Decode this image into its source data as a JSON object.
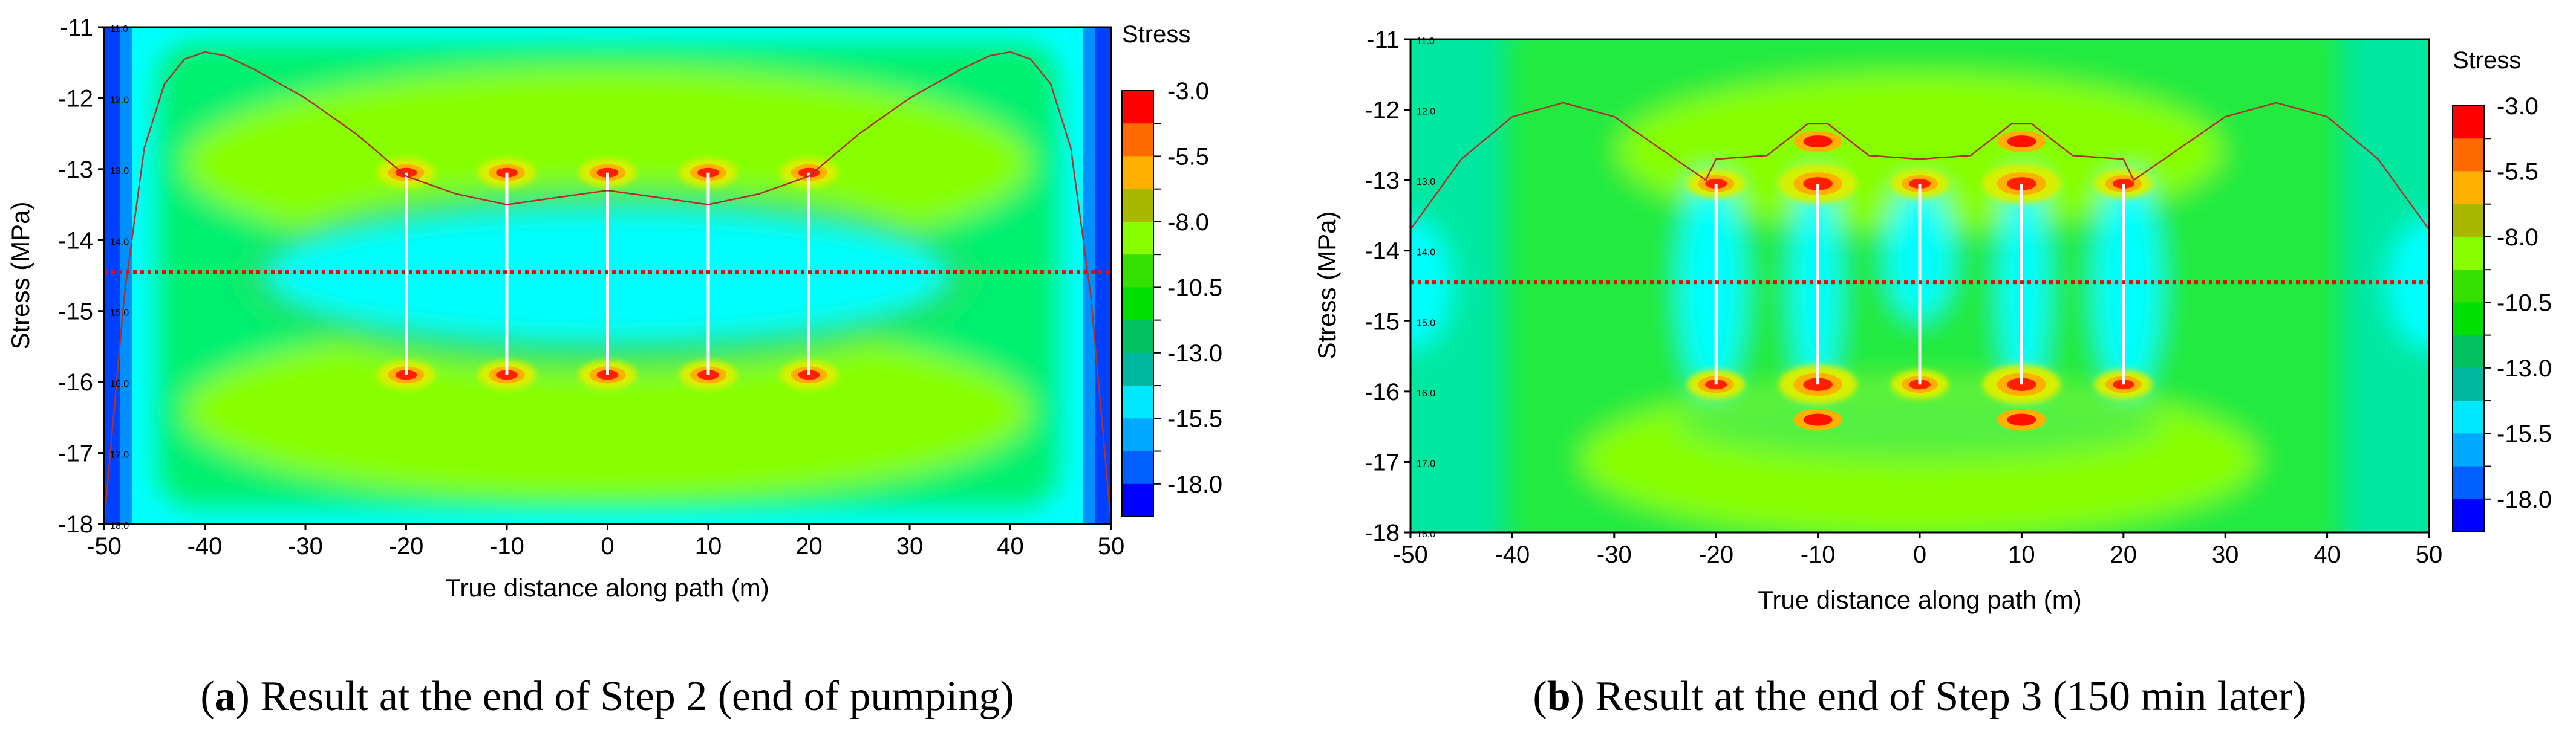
{
  "chart_data": [
    {
      "type": "heatmap",
      "panel_label": "a",
      "caption": "Result at the end of Step 2 (end of pumping)",
      "xlabel": "True distance along path (m)",
      "ylabel": "Stress (MPa)",
      "xlim": [
        -50,
        50
      ],
      "ylim": [
        -18,
        -11
      ],
      "x_ticks": [
        "-50",
        "-40",
        "-30",
        "-20",
        "-10",
        "0",
        "10",
        "20",
        "30",
        "40",
        "50"
      ],
      "y_ticks": [
        "-11",
        "-12",
        "-13",
        "-14",
        "-15",
        "-16",
        "-17",
        "-18"
      ],
      "inner_tick_labels": [
        "11.0",
        "12.0",
        "13.0",
        "14.0",
        "15.0",
        "16.0",
        "17.0",
        "18.0"
      ],
      "legend_title": "Stress",
      "legend_labels": [
        "-3.0",
        "-5.5",
        "-8.0",
        "-10.5",
        "-13.0",
        "-15.5",
        "-18.0"
      ],
      "legend_colors": [
        "#ff0000",
        "#ff6a00",
        "#ffb000",
        "#a8b800",
        "#88ff00",
        "#33e000",
        "#00e000",
        "#00c060",
        "#00b8a0",
        "#00e8ff",
        "#00a8ff",
        "#0060ff",
        "#0000ff"
      ],
      "fractures_x": [
        -20,
        -10,
        0,
        10,
        20
      ],
      "fracture_top_y": -13.05,
      "fracture_bottom_y": -15.9,
      "path_line_y": -14.45,
      "profile_x": [
        -50,
        -48,
        -46,
        -44,
        -42,
        -40,
        -38,
        -35,
        -30,
        -25,
        -20,
        -15,
        -10,
        -5,
        0,
        5,
        10,
        15,
        20,
        25,
        30,
        35,
        38,
        40,
        42,
        44,
        46,
        48,
        50
      ],
      "profile_y": [
        -18,
        -14.8,
        -12.7,
        -11.8,
        -11.45,
        -11.35,
        -11.4,
        -11.6,
        -12.0,
        -12.5,
        -13.1,
        -13.35,
        -13.5,
        -13.4,
        -13.3,
        -13.4,
        -13.5,
        -13.35,
        -13.1,
        -12.5,
        -12.0,
        -11.6,
        -11.4,
        -11.35,
        -11.45,
        -11.8,
        -12.7,
        -14.8,
        -18
      ]
    },
    {
      "type": "heatmap",
      "panel_label": "b",
      "caption": "Result at the end of Step 3 (150 min later)",
      "xlabel": "True distance along path (m)",
      "ylabel": "Stress (MPa)",
      "xlim": [
        -50,
        50
      ],
      "ylim": [
        -18,
        -11
      ],
      "x_ticks": [
        "-50",
        "-40",
        "-30",
        "-20",
        "-10",
        "0",
        "10",
        "20",
        "30",
        "40",
        "50"
      ],
      "y_ticks": [
        "-11",
        "-12",
        "-13",
        "-14",
        "-15",
        "-16",
        "-17",
        "-18"
      ],
      "inner_tick_labels": [
        "11.0",
        "12.0",
        "13.0",
        "14.0",
        "15.0",
        "16.0",
        "17.0",
        "18.0"
      ],
      "legend_title": "Stress",
      "legend_labels": [
        "-3.0",
        "-5.5",
        "-8.0",
        "-10.5",
        "-13.0",
        "-15.5",
        "-18.0"
      ],
      "legend_colors": [
        "#ff0000",
        "#ff6a00",
        "#ffb000",
        "#a8b800",
        "#88ff00",
        "#33e000",
        "#00e000",
        "#00c060",
        "#00b8a0",
        "#00e8ff",
        "#00a8ff",
        "#0060ff",
        "#0000ff"
      ],
      "fractures_x": [
        -20,
        -10,
        0,
        10,
        20
      ],
      "fracture_top_y": -13.05,
      "fracture_bottom_y": -15.9,
      "path_line_y": -14.45,
      "profile_x": [
        -50,
        -45,
        -40,
        -35,
        -30,
        -25,
        -21,
        -20,
        -15,
        -11,
        -9,
        -5,
        0,
        5,
        9,
        11,
        15,
        20,
        21,
        25,
        30,
        35,
        40,
        45,
        50
      ],
      "profile_y": [
        -13.7,
        -12.7,
        -12.1,
        -11.9,
        -12.1,
        -12.6,
        -13.0,
        -12.7,
        -12.65,
        -12.2,
        -12.2,
        -12.65,
        -12.7,
        -12.65,
        -12.2,
        -12.2,
        -12.65,
        -12.7,
        -13.0,
        -12.6,
        -12.1,
        -11.9,
        -12.1,
        -12.7,
        -13.7
      ]
    }
  ]
}
